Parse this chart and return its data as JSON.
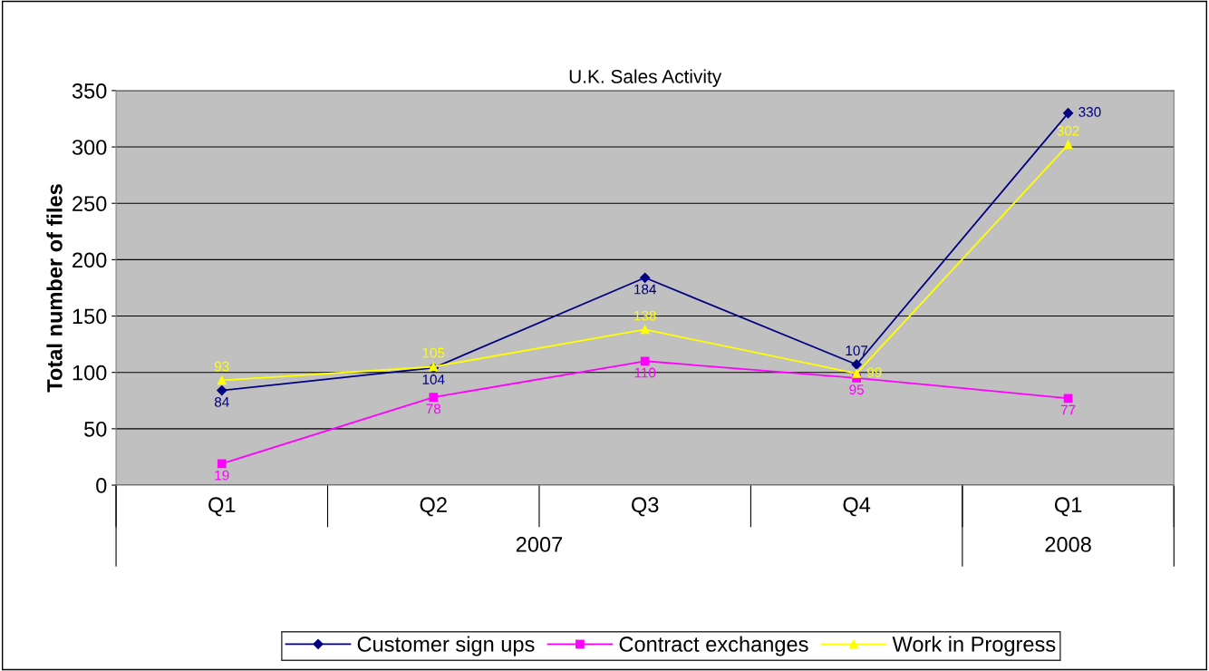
{
  "chart_data": {
    "type": "line",
    "title": "U.K. Sales Activity",
    "ylabel": "Total number of files",
    "categories": [
      "Q1",
      "Q2",
      "Q3",
      "Q4",
      "Q1"
    ],
    "annotations": [
      "2007",
      "2008"
    ],
    "series": [
      {
        "name": "Customer sign ups",
        "color": "#000080",
        "marker": "diamond",
        "values": [
          84,
          104,
          184,
          107,
          330
        ]
      },
      {
        "name": "Contract exchanges",
        "color": "#ff00ff",
        "marker": "square",
        "values": [
          19,
          78,
          110,
          95,
          77
        ]
      },
      {
        "name": "Work in Progress",
        "color": "#ffff00",
        "marker": "triangle",
        "values": [
          93,
          105,
          138,
          99,
          302
        ]
      }
    ],
    "ylim": [
      0,
      350
    ],
    "yticks": [
      0,
      50,
      100,
      150,
      200,
      250,
      300,
      350
    ],
    "grid": "y",
    "legend": "bottom",
    "data_labels": true,
    "line_style": "solid"
  }
}
